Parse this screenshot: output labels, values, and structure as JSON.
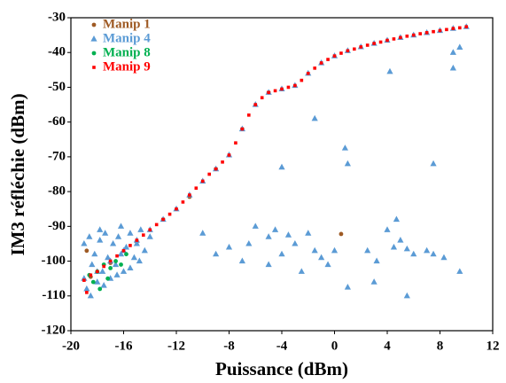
{
  "chart_data": {
    "type": "scatter",
    "x_label": "Puissance (dBm)",
    "y_label": "IM3 réfléchie (dBm)",
    "xlim": [
      -20,
      12
    ],
    "ylim": [
      -120,
      -30
    ],
    "xticks": [
      -20,
      -16,
      -12,
      -8,
      -4,
      0,
      4,
      8,
      12
    ],
    "yticks": [
      -30,
      -40,
      -50,
      -60,
      -70,
      -80,
      -90,
      -100,
      -110,
      -120
    ],
    "grid": false,
    "legend": "upper left",
    "series": [
      {
        "name": "Manip 1",
        "color": "#9e5a24",
        "marker": "circle",
        "x": [
          -18.8,
          -18.5,
          -17,
          -15,
          -13,
          -11,
          -9,
          -7,
          -5,
          0.5
        ],
        "values": [
          -97,
          -104.5,
          -100.5,
          -94.5,
          -88,
          -81.5,
          -73.5,
          -62,
          -51.5,
          -92.2
        ]
      },
      {
        "name": "Manip 4",
        "color": "#5b9bd5",
        "marker": "triangle",
        "x": [
          -19,
          -18,
          -17,
          -16,
          -15,
          -14,
          -13,
          -12,
          -11,
          -10,
          -9,
          -8,
          -7,
          -6,
          -5,
          -4,
          -3,
          -2,
          -1,
          0,
          1,
          2,
          3,
          4,
          5,
          6,
          7,
          8,
          9,
          10,
          -19,
          -18.8,
          -18.6,
          -18.4,
          -18.2,
          -18,
          -17.8,
          -17.6,
          -17.4,
          -17.2,
          -17,
          -16.8,
          -16.6,
          -16.4,
          -16.2,
          -16,
          -15.8,
          -15.5,
          -15.2,
          -15,
          -14.7,
          -14.4,
          -14,
          -18.5,
          -17.5,
          -16.5,
          -15.5,
          -17.8,
          -16.2,
          -14.8,
          9.5,
          9,
          9,
          7.5,
          4.2,
          1,
          0.8,
          -1.5,
          -2,
          -4,
          -6,
          -5,
          -4.5,
          -10,
          -9,
          -8,
          -7,
          -6.5,
          -4,
          -3,
          -1.5,
          -1,
          0,
          1,
          2.5,
          3,
          4.5,
          5,
          5.5,
          4,
          6,
          5.5,
          7,
          7.5,
          8.3,
          9.5,
          3.2,
          -0.5,
          -2.5,
          -5,
          -3.5,
          4.7
        ],
        "values": [
          -105,
          -103,
          -100,
          -97,
          -94,
          -91,
          -88,
          -85,
          -81,
          -77,
          -73.5,
          -69.5,
          -62,
          -55,
          -51.5,
          -50.5,
          -49.5,
          -46,
          -43,
          -41,
          -39.5,
          -38.4,
          -37.4,
          -36.5,
          -35.7,
          -35,
          -34.3,
          -33.7,
          -33.1,
          -32.6,
          -95,
          -108,
          -93,
          -101,
          -98,
          -106,
          -94,
          -103,
          -92,
          -99,
          -105,
          -95,
          -101,
          -93,
          -98,
          -103,
          -96,
          -92,
          -99,
          -95,
          -91,
          -97,
          -93,
          -110,
          -107,
          -104,
          -102,
          -91,
          -90,
          -100,
          -38.5,
          -40,
          -44.5,
          -72,
          -45.5,
          -72,
          -67.5,
          -59,
          -92,
          -73,
          -90,
          -93,
          -91,
          -92,
          -98,
          -96,
          -100,
          -95,
          -98,
          -95,
          -97,
          -99,
          -97,
          -107.5,
          -97,
          -106,
          -96,
          -94,
          -96.5,
          -91,
          -98,
          -110,
          -97,
          -98,
          -99,
          -103,
          -100,
          -101,
          -103,
          -101,
          -92.5,
          -88
        ]
      },
      {
        "name": "Manip 8",
        "color": "#00b050",
        "marker": "circle",
        "x": [
          -18.6,
          -18.3,
          -18,
          -17.8,
          -17.5,
          -17.2,
          -17,
          -16.6,
          -16.2,
          -15.8
        ],
        "values": [
          -104,
          -106,
          -103,
          -108,
          -101,
          -105,
          -102,
          -100,
          -101,
          -98
        ]
      },
      {
        "name": "Manip 9",
        "color": "#ff0000",
        "marker": "square",
        "x": [
          -19,
          -18.5,
          -18,
          -17.5,
          -17,
          -16.5,
          -16,
          -15.5,
          -15,
          -14.5,
          -14,
          -13.5,
          -13,
          -12.5,
          -12,
          -11.5,
          -11,
          -10.5,
          -10,
          -9.5,
          -9,
          -8.5,
          -8,
          -7.5,
          -7,
          -6.5,
          -6,
          -5.5,
          -5,
          -4.5,
          -4,
          -3.5,
          -3,
          -2.5,
          -2,
          -1.5,
          -1,
          -0.5,
          0,
          0.5,
          1,
          1.5,
          2,
          2.5,
          3,
          3.5,
          4,
          4.5,
          5,
          5.5,
          6,
          6.5,
          7,
          7.5,
          8,
          8.5,
          9,
          9.5,
          10,
          -18.8
        ],
        "values": [
          -105.5,
          -104,
          -103,
          -101.5,
          -100,
          -98.5,
          -97,
          -95.5,
          -94,
          -92.5,
          -91,
          -89.5,
          -88,
          -86.5,
          -85,
          -83,
          -81,
          -79,
          -77,
          -75,
          -73.5,
          -71.5,
          -69.5,
          -66,
          -62,
          -58,
          -55,
          -53,
          -51.5,
          -51,
          -50.5,
          -50,
          -49.5,
          -48,
          -46,
          -44.5,
          -43,
          -42,
          -41,
          -40.2,
          -39.5,
          -39,
          -38.4,
          -37.9,
          -37.4,
          -37,
          -36.5,
          -36.1,
          -35.7,
          -35.3,
          -35,
          -34.6,
          -34.3,
          -34,
          -33.7,
          -33.4,
          -33.1,
          -32.9,
          -32.6,
          -109
        ]
      }
    ]
  }
}
